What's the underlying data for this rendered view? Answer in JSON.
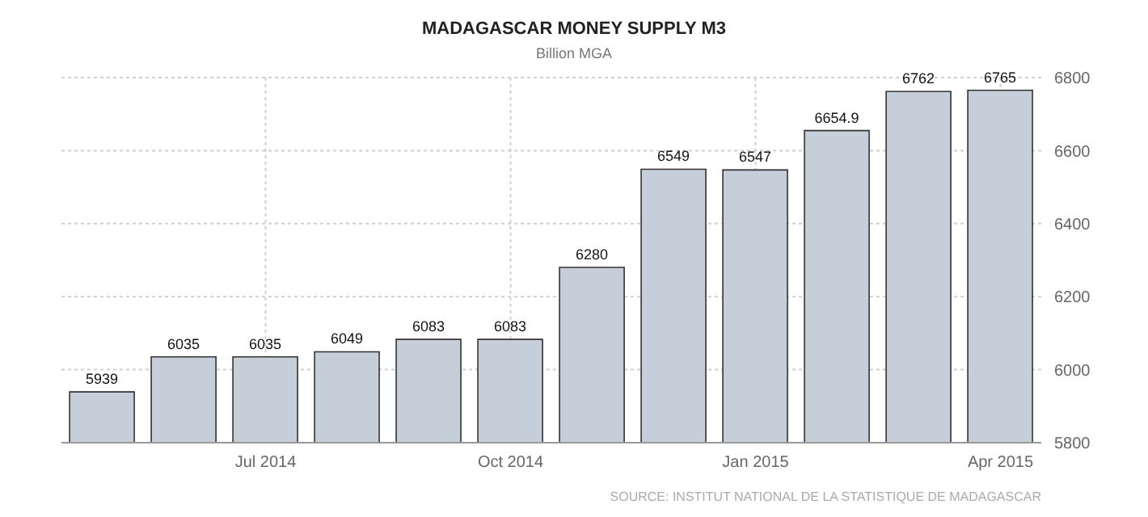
{
  "chart_data": {
    "type": "bar",
    "title": "MADAGASCAR MONEY SUPPLY M3",
    "subtitle": "Billion MGA",
    "categories": [
      null,
      null,
      "Jul 2014",
      null,
      null,
      "Oct 2014",
      null,
      null,
      "Jan 2015",
      null,
      null,
      "Apr 2015"
    ],
    "values": [
      5939,
      6035,
      6035,
      6049,
      6083,
      6083,
      6280,
      6549,
      6547,
      6654.9,
      6762,
      6765
    ],
    "color": "#c5ced9",
    "ylim": [
      5800,
      6800
    ],
    "yticks": [
      5800,
      6000,
      6200,
      6400,
      6600,
      6800
    ],
    "grid": true,
    "data_labels": true,
    "annotations": [
      "SOURCE: INSTITUT NATIONAL DE LA STATISTIQUE DE MADAGASCAR"
    ]
  }
}
